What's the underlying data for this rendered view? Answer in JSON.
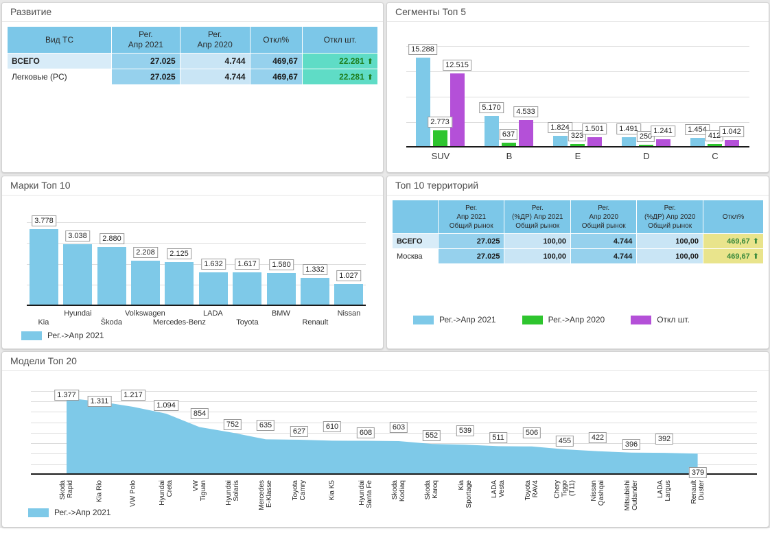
{
  "colors": {
    "bar_blue": "#7ec9e8",
    "bar_green": "#2ec52e",
    "bar_purple": "#b450d8",
    "header_blue": "#7cc7e8",
    "cell_blue": "#96d1ed",
    "cell_light_blue": "#c9e5f5",
    "row_highlight_blue": "#d8ecf8",
    "cell_teal": "#5fdcc6",
    "cell_yellow": "#e9e48c",
    "positive_green": "#1e7e1e"
  },
  "panels": {
    "development": {
      "title": "Развитие",
      "table": {
        "col_headers": [
          "Вид ТС",
          "Рег.\nАпр 2021",
          "Рег.\nАпр 2020",
          "Откл%",
          "Откл шт."
        ],
        "rows": [
          {
            "label": "ВСЕГО",
            "bold": true,
            "reg_apr_2021": "27.025",
            "reg_apr_2020": "4.744",
            "deviation_pct": "469,67",
            "deviation_units": "22.281",
            "trend": "up"
          },
          {
            "label": "Легковые (PC)",
            "bold": false,
            "reg_apr_2021": "27.025",
            "reg_apr_2020": "4.744",
            "deviation_pct": "469,67",
            "deviation_units": "22.281",
            "trend": "up"
          }
        ]
      }
    },
    "segments": {
      "title": "Сегменты Топ 5",
      "chart_data": {
        "type": "bar",
        "categories": [
          "SUV",
          "B",
          "E",
          "D",
          "C"
        ],
        "series": [
          {
            "name": "Рег.->Апр 2021",
            "color_key": "bar_blue",
            "values": [
              15288,
              5170,
              1824,
              1491,
              1454
            ]
          },
          {
            "name": "Рег.->Апр 2020",
            "color_key": "bar_green",
            "values": [
              2773,
              637,
              323,
              250,
              412
            ]
          },
          {
            "name": "Откл шт.",
            "color_key": "bar_purple",
            "values": [
              12515,
              4533,
              1501,
              1241,
              1042
            ]
          }
        ],
        "ylim": [
          0,
          17500
        ],
        "grid": true,
        "legend_position": "bottom"
      }
    },
    "brands": {
      "title": "Марки Топ 10",
      "chart_data": {
        "type": "bar",
        "categories": [
          "Kia",
          "Hyundai",
          "Škoda",
          "Volkswagen",
          "Mercedes-Benz",
          "LADA",
          "Toyota",
          "BMW",
          "Renault",
          "Nissan"
        ],
        "series": [
          {
            "name": "Рег.->Апр 2021",
            "color_key": "bar_blue",
            "values": [
              3778,
              3038,
              2880,
              2208,
              2125,
              1632,
              1617,
              1580,
              1332,
              1027
            ]
          }
        ],
        "ylim": [
          0,
          4200
        ],
        "grid": true,
        "legend_position": "bottom"
      }
    },
    "territories": {
      "title": "Топ 10 территорий",
      "table": {
        "col_headers": [
          "",
          "Рег.\nАпр 2021\nОбщий рынок",
          "Рег.\n(%ДР) Апр 2021\nОбщий рынок",
          "Рег.\nАпр 2020\nОбщий рынок",
          "Рег.\n(%ДР) Апр 2020\nОбщий рынок",
          "Откл%"
        ],
        "rows": [
          {
            "label": "ВСЕГО",
            "bold": true,
            "cells": [
              "27.025",
              "100,00",
              "4.744",
              "100,00",
              "469,67"
            ],
            "trend": "up"
          },
          {
            "label": "Москва",
            "bold": false,
            "cells": [
              "27.025",
              "100,00",
              "4.744",
              "100,00",
              "469,67"
            ],
            "trend": "up"
          }
        ]
      }
    },
    "models": {
      "title": "Модели Топ 20",
      "chart_data": {
        "type": "area",
        "categories": [
          "Skoda\nRapid",
          "Kia Rio",
          "VW Polo",
          "Hyundai\nCreta",
          "VW\nTiguan",
          "Hyundai\nSolaris",
          "Mercedes\nE-Klasse",
          "Toyota\nCamry",
          "Kia K5",
          "Hyundai\nSanta Fe",
          "Skoda\nKodiaq",
          "Skoda\nKaroq",
          "Kia\nSportage",
          "LADA\nVesta",
          "Toyota\nRAV4",
          "Chery\nTiggo\n(T11)",
          "Nissan\nQashqai",
          "Mitsubishi\nOutlander",
          "LADA\nLargus",
          "Renault\nDuster"
        ],
        "series": [
          {
            "name": "Рег.->Апр 2021",
            "color_key": "bar_blue",
            "values": [
              1377,
              1311,
              1217,
              1094,
              854,
              752,
              635,
              627,
              610,
              608,
              603,
              552,
              539,
              511,
              506,
              455,
              422,
              396,
              392,
              379
            ]
          }
        ],
        "ylim": [
          0,
          1500
        ],
        "grid": true,
        "legend_position": "bottom"
      }
    }
  }
}
